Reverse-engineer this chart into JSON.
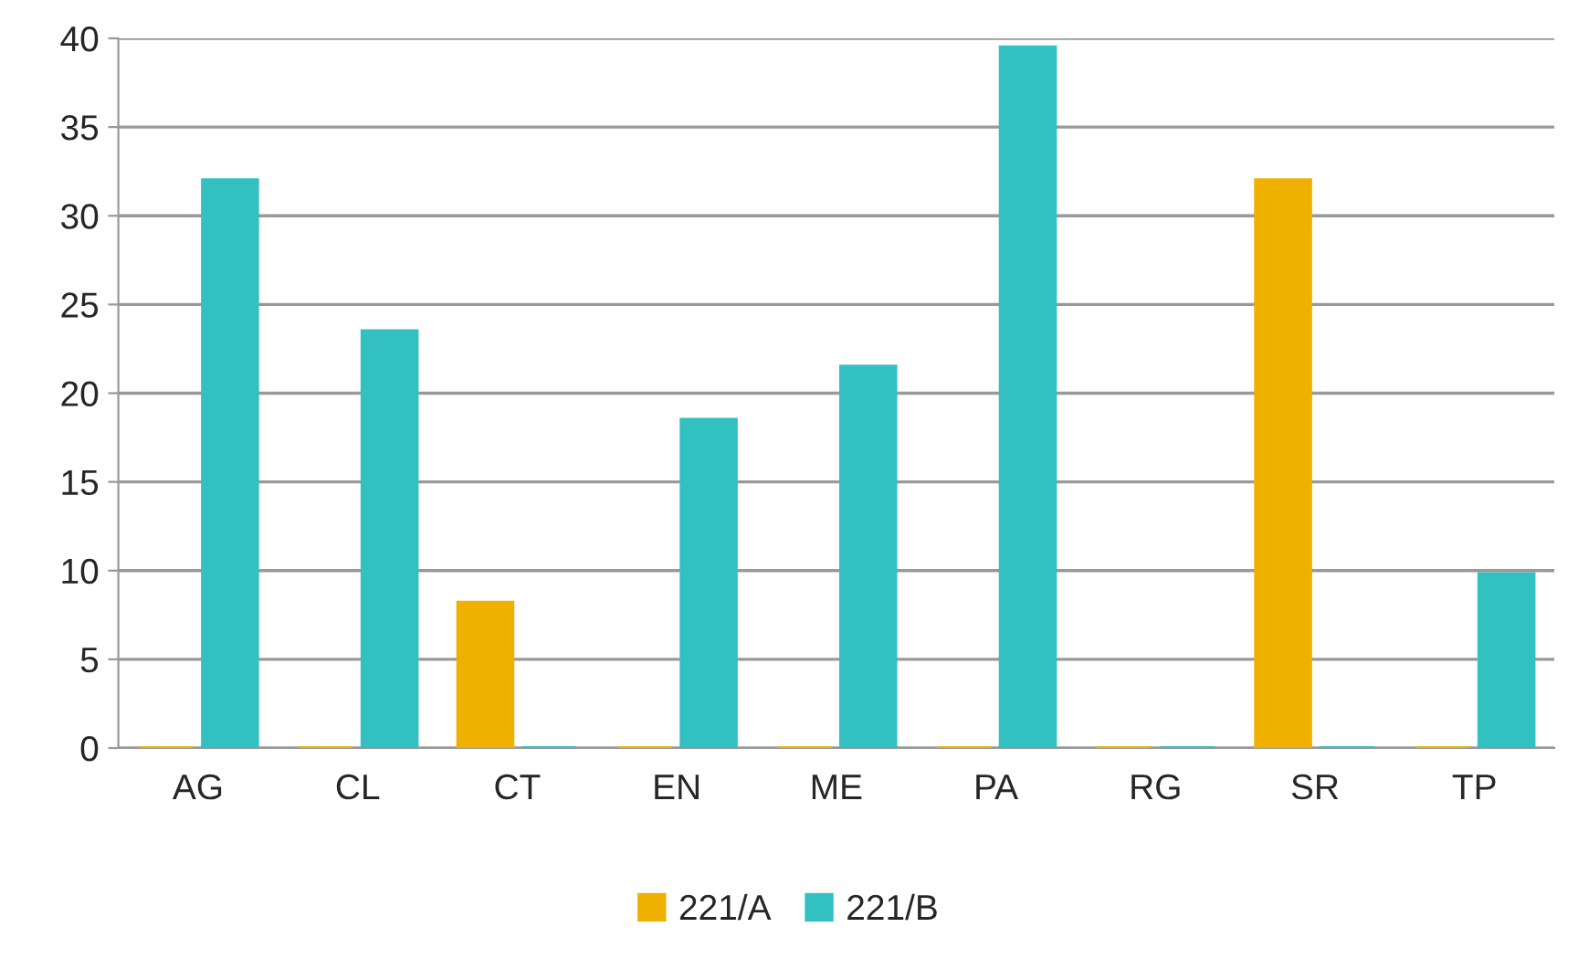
{
  "chart_data": {
    "type": "bar",
    "categories": [
      "AG",
      "CL",
      "CT",
      "EN",
      "ME",
      "PA",
      "RG",
      "SR",
      "TP"
    ],
    "series": [
      {
        "name": "221/A",
        "color": "#f0b000",
        "values": [
          0,
          0,
          8.2,
          0,
          0,
          0,
          0,
          32,
          0
        ]
      },
      {
        "name": "221/B",
        "color": "#33c0c0",
        "values": [
          32,
          23.5,
          0,
          18.5,
          21.5,
          39.5,
          0,
          0,
          9.8
        ]
      }
    ],
    "ylim": [
      0,
      40
    ],
    "yticks": [
      0,
      5,
      10,
      15,
      20,
      25,
      30,
      35,
      40
    ],
    "grid": "y",
    "legend": "bottom"
  }
}
